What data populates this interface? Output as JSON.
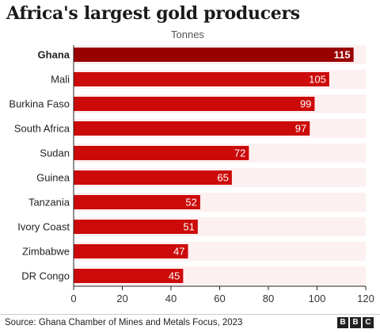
{
  "title": "Africa's largest gold producers",
  "unit": "Tonnes",
  "source": "Source: Ghana Chamber of Mines and Metals Focus, 2023",
  "logo_letters": [
    "B",
    "B",
    "C"
  ],
  "colors": {
    "highlight": "#990000",
    "bar": "#cc0a0a",
    "band": "#fdf0f0",
    "axis": "#222222",
    "grid": "#dddddd"
  },
  "chart_data": {
    "type": "bar",
    "orientation": "horizontal",
    "categories": [
      "Ghana",
      "Mali",
      "Burkina Faso",
      "South Africa",
      "Sudan",
      "Guinea",
      "Tanzania",
      "Ivory Coast",
      "Zimbabwe",
      "DR Congo"
    ],
    "values": [
      115,
      105,
      99,
      97,
      72,
      65,
      52,
      51,
      47,
      45
    ],
    "highlighted": "Ghana",
    "xlabel": "Tonnes",
    "xlim": [
      0,
      120
    ],
    "xticks": [
      0,
      20,
      40,
      60,
      80,
      100,
      120
    ],
    "grid": false,
    "data_labels": true
  }
}
